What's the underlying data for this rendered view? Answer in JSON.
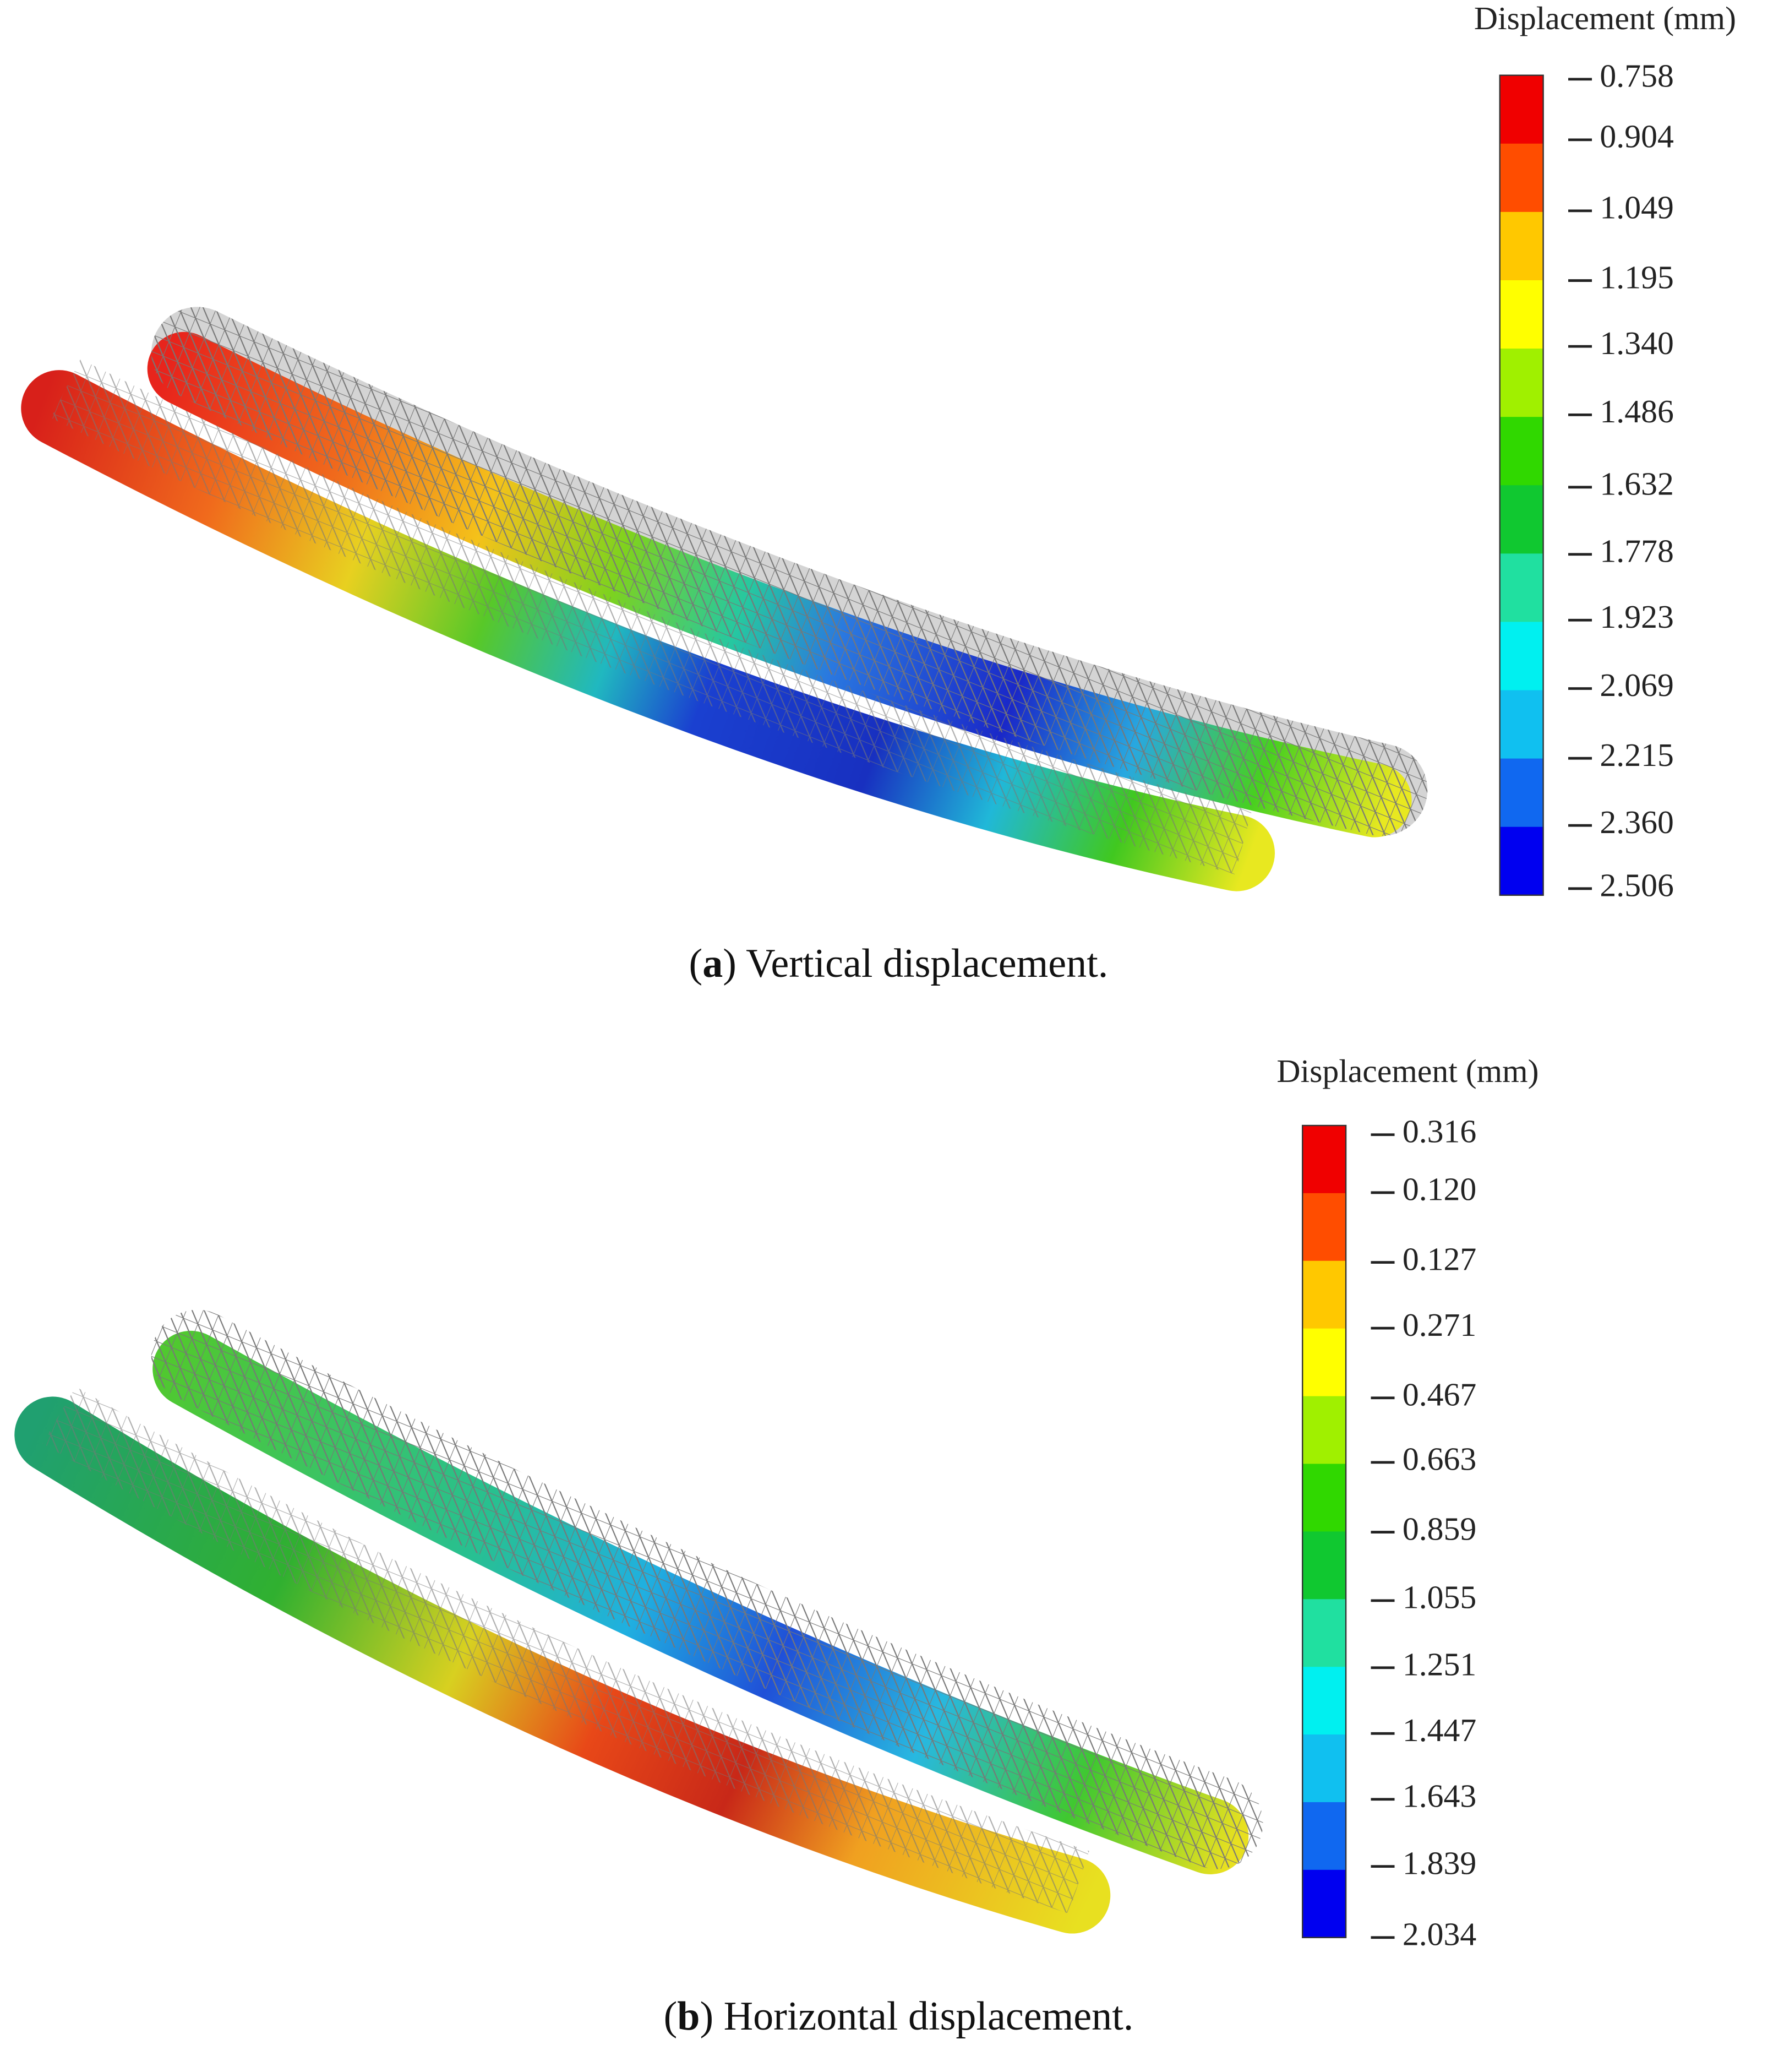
{
  "panels": [
    {
      "legend": {
        "title": "Displacement  (mm)",
        "labels": [
          "0.758",
          "0.904",
          "1.049",
          "1.195",
          "1.340",
          "1.486",
          "1.632",
          "1.778",
          "1.923",
          "2.069",
          "2.215",
          "2.360",
          "2.506"
        ]
      },
      "caption": [
        "(",
        "a",
        ") Vertical displacement."
      ]
    },
    {
      "legend": {
        "title": "Displacement  (mm)",
        "labels": [
          "0.316",
          "0.120",
          "0.127",
          "0.271",
          "0.467",
          "0.663",
          "0.859",
          "1.055",
          "1.251",
          "1.447",
          "1.643",
          "1.839",
          "2.034"
        ]
      },
      "caption": [
        "(",
        "b",
        ") Horizontal displacement."
      ]
    }
  ]
}
